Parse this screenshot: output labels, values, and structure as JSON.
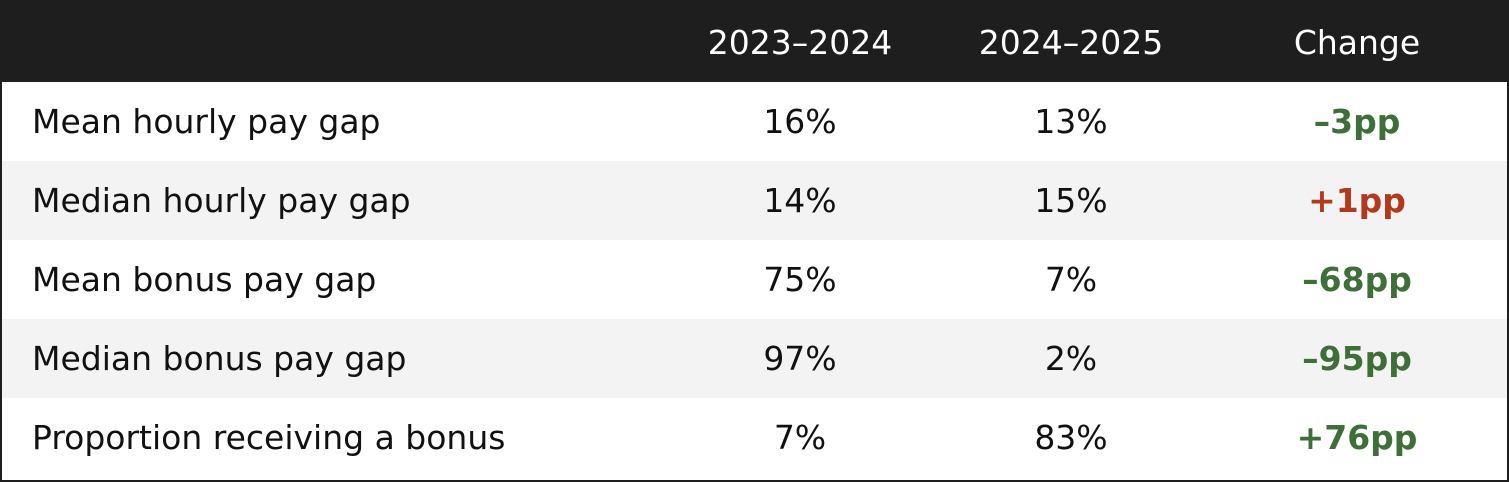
{
  "table": {
    "header": [
      "2023–2024",
      "2024–2025",
      "Change"
    ],
    "rows": [
      [
        "Mean hourly pay gap",
        "16%",
        "13%",
        "–3pp"
      ],
      [
        "Median hourly pay gap",
        "14%",
        "15%",
        "+1pp"
      ],
      [
        "Mean bonus pay gap",
        "75%",
        "7%",
        "–68pp"
      ],
      [
        "Median bonus pay gap",
        "97%",
        "2%",
        "–95pp"
      ],
      [
        "Proportion receiving a bonus",
        "7%",
        "83%",
        "+76pp"
      ]
    ]
  }
}
